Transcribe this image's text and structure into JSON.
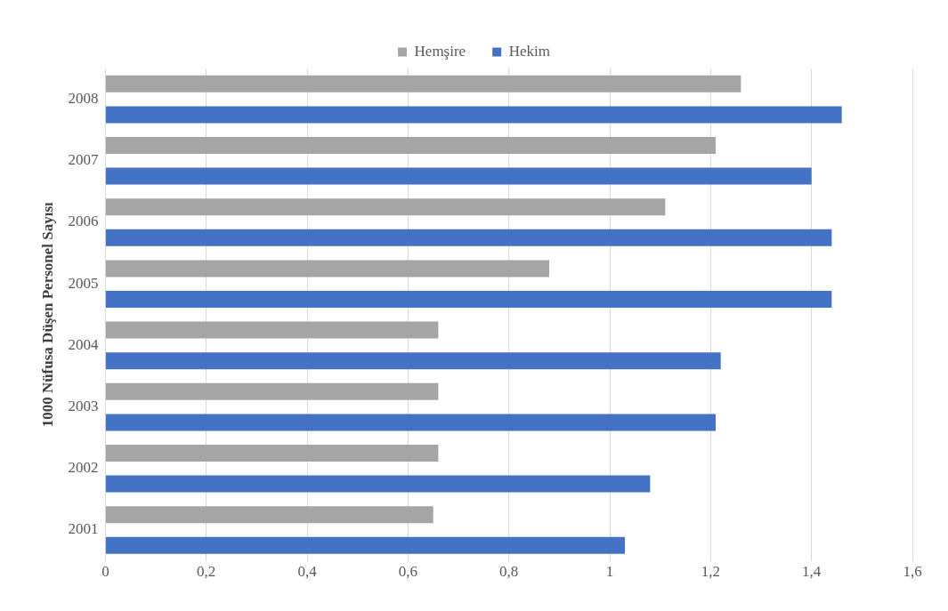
{
  "chart_data": {
    "type": "bar",
    "orientation": "horizontal",
    "ylabel": "1000 Nüfusa Düşen Personel Sayısı",
    "categories": [
      "2008",
      "2007",
      "2006",
      "2005",
      "2004",
      "2003",
      "2002",
      "2001"
    ],
    "series": [
      {
        "name": "Hemşire",
        "color": "#a5a5a5",
        "values": [
          1.26,
          1.21,
          1.11,
          0.88,
          0.66,
          0.66,
          0.66,
          0.65
        ]
      },
      {
        "name": "Hekim",
        "color": "#4472c4",
        "values": [
          1.46,
          1.4,
          1.44,
          1.44,
          1.22,
          1.21,
          1.08,
          1.03
        ]
      }
    ],
    "xlim": [
      0,
      1.6
    ],
    "xticks": [
      0,
      {
        "value": 0.2,
        "label": "0,2"
      },
      {
        "value": 0.4,
        "label": "0,4"
      },
      {
        "value": 0.6,
        "label": "0,6"
      },
      {
        "value": 0.8,
        "label": "0,8"
      },
      1,
      {
        "value": 1.2,
        "label": "1,2"
      },
      {
        "value": 1.4,
        "label": "1,4"
      },
      {
        "value": 1.6,
        "label": "1,6"
      }
    ],
    "grid": "x",
    "legend": "top"
  }
}
